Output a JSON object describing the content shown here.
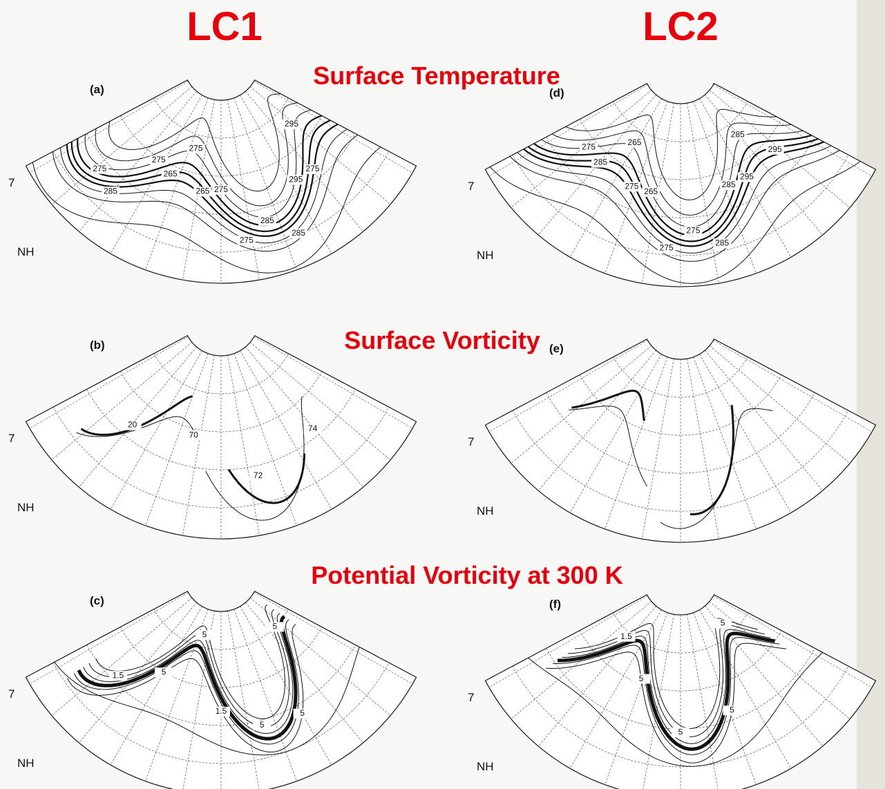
{
  "header": {
    "left": "LC1",
    "right": "LC2"
  },
  "rows": [
    {
      "title": "Surface Temperature"
    },
    {
      "title": "Surface Vorticity"
    },
    {
      "title": "Potential Vorticity at 300 K"
    }
  ],
  "panels": [
    {
      "label": "(a)",
      "hemisphere": "NH",
      "edge_mark": "7",
      "contour_labels": [
        "275",
        "285",
        "275",
        "265",
        "275",
        "265",
        "275",
        "275",
        "285",
        "285",
        "295",
        "275",
        "295"
      ]
    },
    {
      "label": "(b)",
      "hemisphere": "NH",
      "edge_mark": "7",
      "contour_labels": [
        "20",
        "70",
        "72",
        "74"
      ]
    },
    {
      "label": "(c)",
      "hemisphere": "NH",
      "edge_mark": "7",
      "contour_labels": [
        "1.5",
        "5",
        "5",
        "1.5",
        "5",
        "5",
        "5"
      ]
    },
    {
      "label": "(d)",
      "hemisphere": "NH",
      "edge_mark": "7",
      "contour_labels": [
        "275",
        "285",
        "265",
        "275",
        "265",
        "275",
        "275",
        "285",
        "285",
        "295",
        "285",
        "295"
      ]
    },
    {
      "label": "(e)",
      "hemisphere": "NH",
      "edge_mark": "7",
      "contour_labels": []
    },
    {
      "label": "(f)",
      "hemisphere": "NH",
      "edge_mark": "7",
      "contour_labels": [
        "1.5",
        "5",
        "5",
        "5",
        "5"
      ]
    }
  ]
}
